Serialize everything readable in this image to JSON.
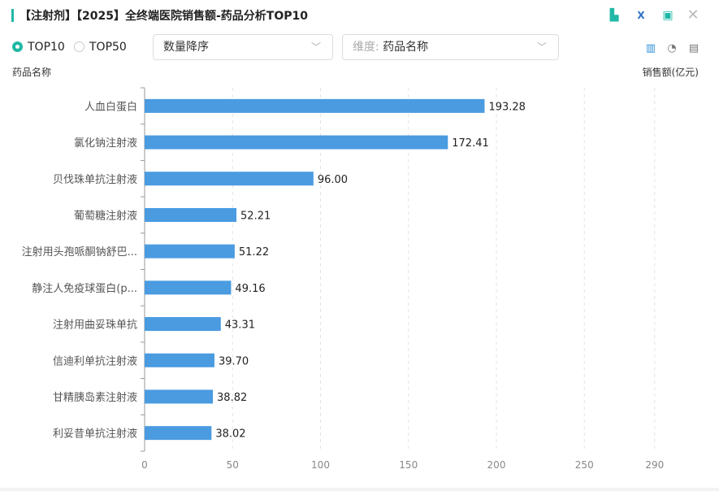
{
  "header": {
    "title": "【注射剂】【2025】全终端医院销售额-药品分析TOP10"
  },
  "controls": {
    "radio_top10": "TOP10",
    "radio_top50": "TOP50",
    "selected": "TOP10",
    "sort_select": "数量降序",
    "dimension_label": "维度:",
    "dimension_value": "药品名称"
  },
  "icons": [
    "file-search-icon",
    "excel-icon",
    "image-icon",
    "close-icon",
    "bar-chart-icon",
    "pie-chart-icon",
    "document-icon"
  ],
  "colors": {
    "accent": "#1fb8a6",
    "bar": "#4a9be0"
  },
  "chart_data": {
    "type": "bar",
    "orientation": "horizontal",
    "ylabel": "药品名称",
    "xlabel": "销售额(亿元)",
    "categories": [
      "人血白蛋白",
      "氯化钠注射液",
      "贝伐珠单抗注射液",
      "葡萄糖注射液",
      "注射用头孢哌酮钠舒巴...",
      "静注人免疫球蛋白(p...",
      "注射用曲妥珠单抗",
      "信迪利单抗注射液",
      "甘精胰岛素注射液",
      "利妥昔单抗注射液"
    ],
    "values": [
      193.28,
      172.41,
      96.0,
      52.21,
      51.22,
      49.16,
      43.31,
      39.7,
      38.82,
      38.02
    ],
    "value_labels": [
      "193.28",
      "172.41",
      "96.00",
      "52.21",
      "51.22",
      "49.16",
      "43.31",
      "39.70",
      "38.82",
      "38.02"
    ],
    "xticks": [
      "0",
      "50",
      "100",
      "150",
      "200",
      "250",
      "290"
    ],
    "xtick_values": [
      0,
      50,
      100,
      150,
      200,
      250,
      290
    ],
    "xlim": [
      0,
      300
    ],
    "grid": true
  }
}
